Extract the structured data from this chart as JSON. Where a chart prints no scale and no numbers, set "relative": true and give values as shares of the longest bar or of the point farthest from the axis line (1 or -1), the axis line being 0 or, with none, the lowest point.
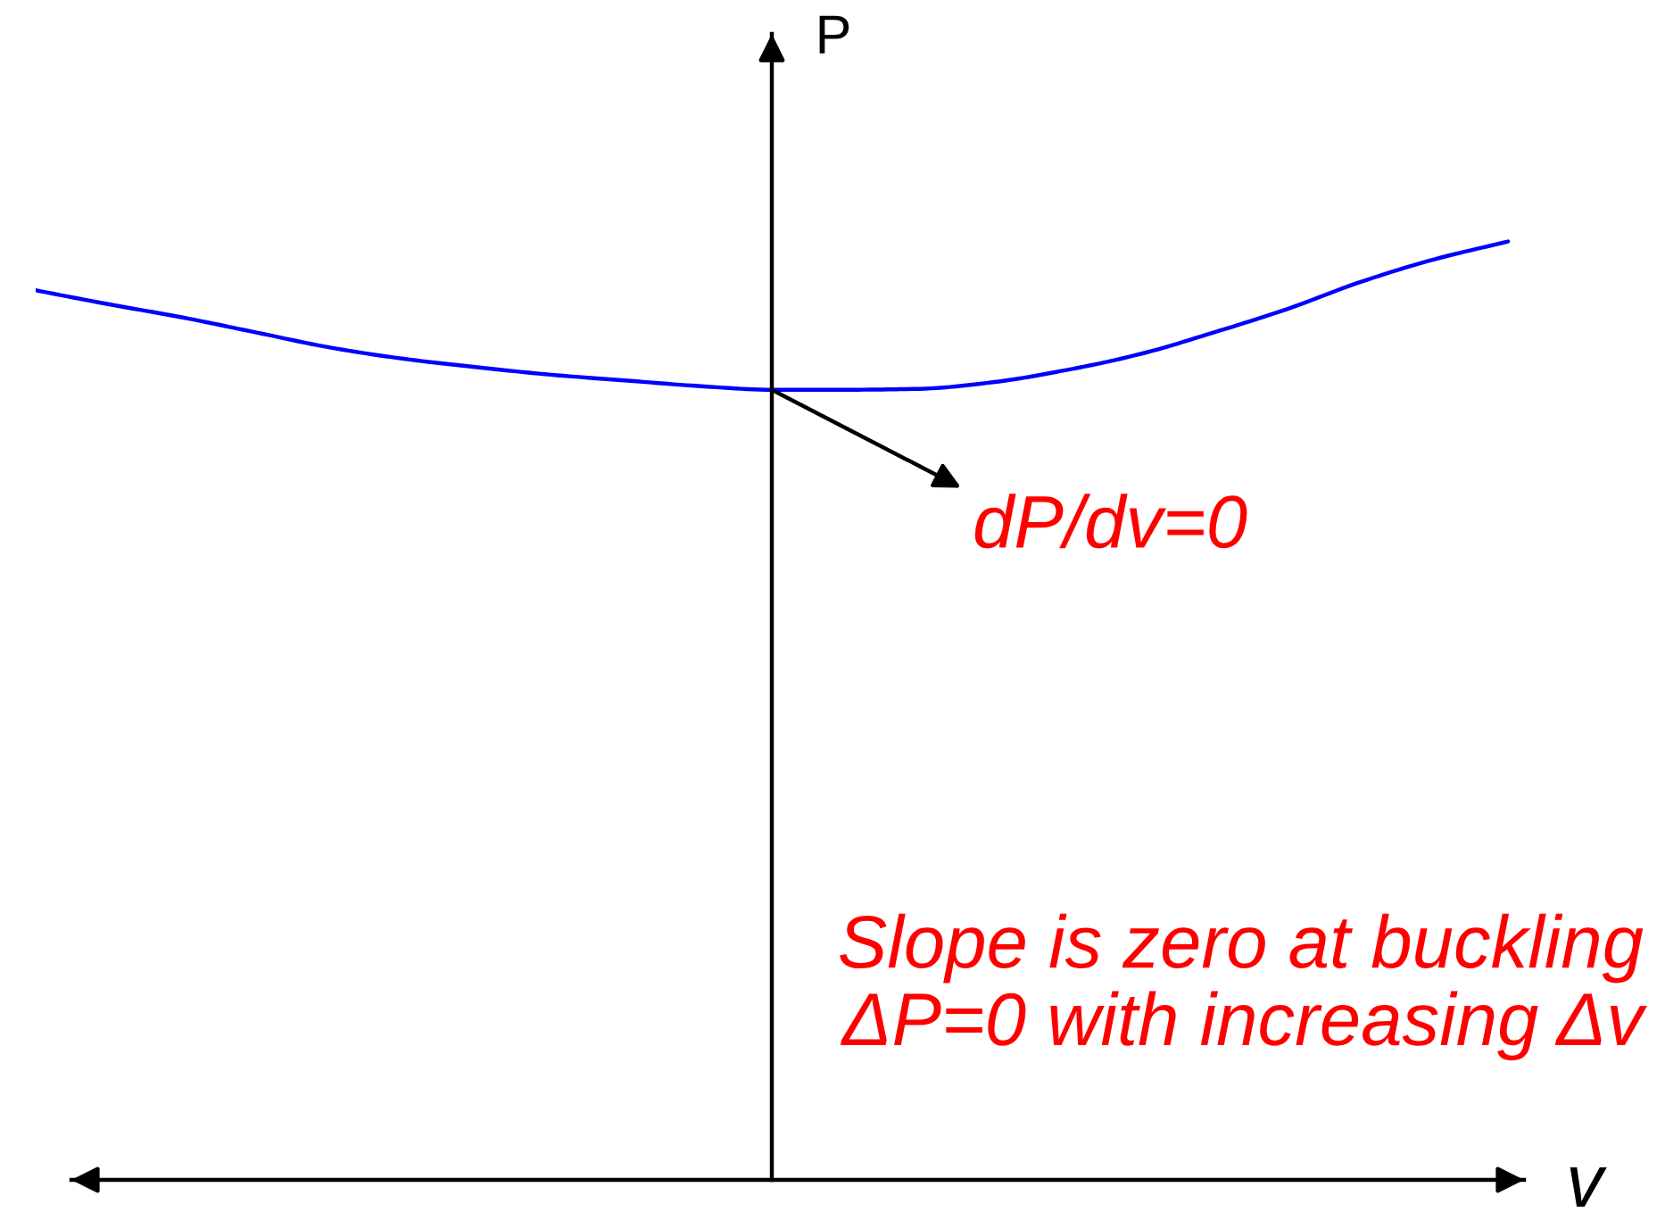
{
  "chart_data": {
    "type": "line",
    "relative": true,
    "xlabel": "v",
    "ylabel": "P",
    "categories": [
      null,
      null,
      null,
      null,
      null,
      null,
      null,
      null,
      null,
      null,
      null,
      null,
      null,
      null,
      null,
      null,
      null,
      null,
      null,
      null,
      null
    ],
    "series": [
      {
        "color": "#0000ff",
        "values": [
          0.948,
          0.933,
          0.919,
          0.903,
          0.887,
          0.875,
          0.866,
          0.858,
          0.852,
          0.846,
          0.842,
          0.842,
          0.843,
          0.85,
          0.863,
          0.88,
          0.903,
          0.928,
          0.957,
          0.981,
          1.0
        ]
      }
    ],
    "annotations": [
      "dP/dv=0",
      "Slope is zero at buckling\nΔP=0 with increasing Δv"
    ]
  }
}
